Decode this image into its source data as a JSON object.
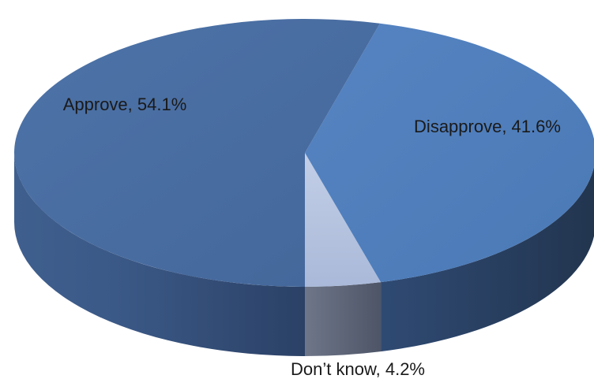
{
  "chart_data": {
    "type": "pie",
    "style": "3d",
    "title": "",
    "slices": [
      {
        "label": "Approve",
        "value": 54.1,
        "display": "Approve, 54.1%",
        "color": "#4a6fa3"
      },
      {
        "label": "Disapprove",
        "value": 41.6,
        "display": "Disapprove, 41.6%",
        "color": "#4f7fbc"
      },
      {
        "label": "Don’t know",
        "value": 4.2,
        "display": "Don’t know, 4.2%",
        "color": "#b4c2df"
      }
    ],
    "legend": "none",
    "label_position": "inside"
  }
}
